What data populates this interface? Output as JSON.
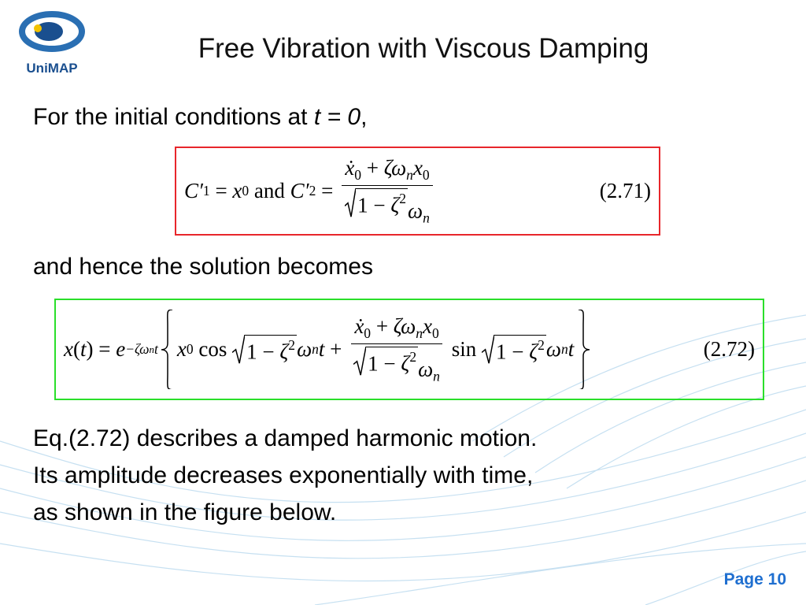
{
  "logo": {
    "text": "UniMAP"
  },
  "header": {
    "title": "Free Vibration with Viscous Damping"
  },
  "intro": {
    "text": "For the initial conditions at ",
    "condition": "t = 0",
    "punct": ","
  },
  "equation_1": {
    "parts": [
      {
        "text": "C′",
        "i": true
      },
      {
        "text": "1",
        "pos": "sub"
      },
      {
        "text": " = "
      },
      {
        "text": "x",
        "i": true
      },
      {
        "text": "0",
        "pos": "sub"
      },
      {
        "text": " and "
      },
      {
        "text": "C′",
        "i": true
      },
      {
        "text": "2",
        "pos": "sub"
      },
      {
        "text": " = "
      },
      {
        "frac": {
          "num": [
            {
              "text": "ẋ",
              "i": true
            },
            {
              "text": "0",
              "pos": "sub"
            },
            {
              "text": " + "
            },
            {
              "text": "ζω",
              "i": true
            },
            {
              "text": "n",
              "i": true,
              "pos": "sub"
            },
            {
              "text": "x",
              "i": true
            },
            {
              "text": "0",
              "pos": "sub"
            }
          ],
          "den": [
            {
              "sqrt": [
                {
                  "text": "1 − "
                },
                {
                  "text": "ζ",
                  "i": true
                },
                {
                  "text": "2",
                  "pos": "sup"
                }
              ]
            },
            {
              "text": "ω",
              "i": true
            },
            {
              "text": "n",
              "i": true,
              "pos": "sub"
            }
          ]
        }
      }
    ],
    "label": "(2.71)"
  },
  "transition": {
    "text": "and hence the solution becomes"
  },
  "equation_2": {
    "parts": [
      {
        "text": "x",
        "i": true
      },
      {
        "text": "("
      },
      {
        "text": "t",
        "i": true
      },
      {
        "text": ") = "
      },
      {
        "text": "e",
        "i": true
      },
      {
        "text": "−ζω",
        "i": true,
        "pos": "sup"
      },
      {
        "text": "n",
        "i": true,
        "pos": "supsub"
      },
      {
        "text": "t",
        "i": true,
        "pos": "sup"
      },
      {
        "brace": [
          {
            "text": "x",
            "i": true
          },
          {
            "text": "0",
            "pos": "sub"
          },
          {
            "text": " cos "
          },
          {
            "sqrt": [
              {
                "text": "1 − "
              },
              {
                "text": "ζ",
                "i": true
              },
              {
                "text": "2",
                "pos": "sup"
              }
            ]
          },
          {
            "text": "ω",
            "i": true
          },
          {
            "text": "n",
            "i": true,
            "pos": "sub"
          },
          {
            "text": "t",
            "i": true
          },
          {
            "text": " + "
          },
          {
            "frac": {
              "num": [
                {
                  "text": "ẋ",
                  "i": true
                },
                {
                  "text": "0",
                  "pos": "sub"
                },
                {
                  "text": " + "
                },
                {
                  "text": "ζω",
                  "i": true
                },
                {
                  "text": "n",
                  "i": true,
                  "pos": "sub"
                },
                {
                  "text": "x",
                  "i": true
                },
                {
                  "text": "0",
                  "pos": "sub"
                }
              ],
              "den": [
                {
                  "sqrt": [
                    {
                      "text": "1 − "
                    },
                    {
                      "text": "ζ",
                      "i": true
                    },
                    {
                      "text": "2",
                      "pos": "sup"
                    }
                  ]
                },
                {
                  "text": "ω",
                  "i": true
                },
                {
                  "text": "n",
                  "i": true,
                  "pos": "sub"
                }
              ]
            }
          },
          {
            "text": " sin "
          },
          {
            "sqrt": [
              {
                "text": "1 − "
              },
              {
                "text": "ζ",
                "i": true
              },
              {
                "text": "2",
                "pos": "sup"
              }
            ]
          },
          {
            "text": "ω",
            "i": true
          },
          {
            "text": "n",
            "i": true,
            "pos": "sub"
          },
          {
            "text": "t",
            "i": true
          }
        ]
      }
    ],
    "label": "(2.72)"
  },
  "body": [
    "Eq.(2.72) describes a damped harmonic motion.",
    "Its amplitude decreases exponentially with time,",
    "as shown in the figure below."
  ],
  "footer": {
    "page": "Page 10"
  }
}
